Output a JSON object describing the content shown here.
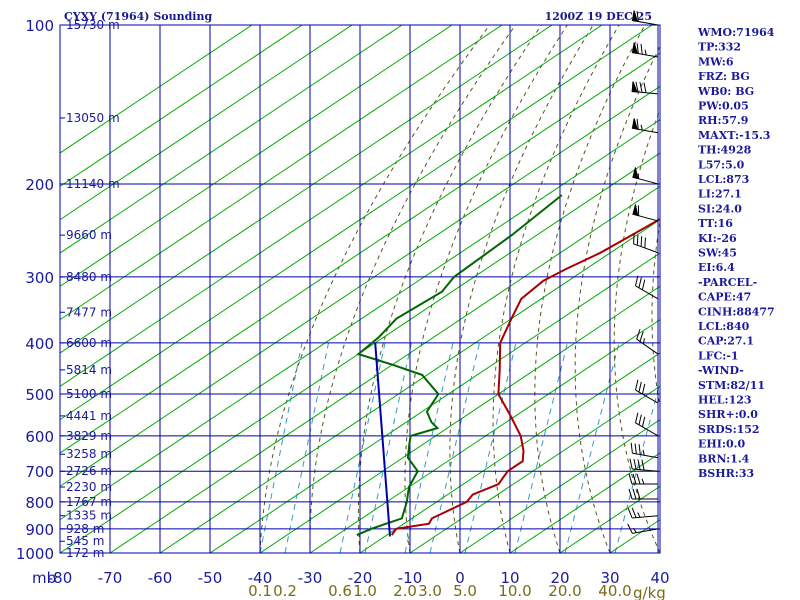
{
  "header": {
    "station": "CYXY (71964) Sounding",
    "time": "1200Z 19 DEC 25"
  },
  "colors": {
    "grid": "#0000aa",
    "isotherm": "#00aa00",
    "dry_adiabat": "#555522",
    "mixing_ratio": "#3399cc",
    "temperature": "#aa0000",
    "dewpoint": "#006600",
    "parcel": "#0000aa",
    "wind": "#000000"
  },
  "chart_data": {
    "type": "line",
    "diagram": "skew-t log-p",
    "pressure_levels": [
      100,
      200,
      300,
      400,
      500,
      600,
      700,
      800,
      900,
      1000
    ],
    "pressure_unit_label": "mb",
    "temp_ticks": [
      -80,
      -70,
      -60,
      -50,
      -40,
      -30,
      -20,
      -10,
      0,
      10,
      20,
      30,
      40
    ],
    "heights": [
      {
        "p": 100,
        "label": "15730 m"
      },
      {
        "p": 150,
        "label": "13050 m"
      },
      {
        "p": 200,
        "label": "11140 m"
      },
      {
        "p": 250,
        "label": "9660 m"
      },
      {
        "p": 300,
        "label": "8480 m"
      },
      {
        "p": 350,
        "label": "7477 m"
      },
      {
        "p": 400,
        "label": "6600 m"
      },
      {
        "p": 450,
        "label": "5814 m"
      },
      {
        "p": 500,
        "label": "5100 m"
      },
      {
        "p": 550,
        "label": "4441 m"
      },
      {
        "p": 600,
        "label": "3829 m"
      },
      {
        "p": 650,
        "label": "3258 m"
      },
      {
        "p": 700,
        "label": "2726 m"
      },
      {
        "p": 750,
        "label": "2230 m"
      },
      {
        "p": 800,
        "label": "1767 m"
      },
      {
        "p": 850,
        "label": "1335 m"
      },
      {
        "p": 900,
        "label": "928 m"
      },
      {
        "p": 950,
        "label": "545 m"
      },
      {
        "p": 1000,
        "label": "172 m"
      }
    ],
    "mixing_ratio_labels": [
      {
        "label": "0.1",
        "t": -40
      },
      {
        "label": "0.2",
        "t": -35
      },
      {
        "label": "0.6",
        "t": -24
      },
      {
        "label": "1.0",
        "t": -19
      },
      {
        "label": "2.0",
        "t": -11
      },
      {
        "label": "3.0",
        "t": -6
      },
      {
        "label": "5.0",
        "t": 1
      },
      {
        "label": "10.0",
        "t": 11
      },
      {
        "label": "20.0",
        "t": 21
      },
      {
        "label": "40.0",
        "t": 31
      }
    ],
    "mixing_ratio_unit": "g/kg",
    "series": [
      {
        "points": [
          {
            "p": 100,
            "t": -57
          },
          {
            "p": 107,
            "t": -56
          },
          {
            "p": 115,
            "t": -57
          },
          {
            "p": 130,
            "t": -55
          },
          {
            "p": 160,
            "t": -56
          },
          {
            "p": 200,
            "t": -58
          },
          {
            "p": 230,
            "t": -60
          },
          {
            "p": 250,
            "t": -61
          },
          {
            "p": 270,
            "t": -62
          },
          {
            "p": 290,
            "t": -64
          },
          {
            "p": 305,
            "t": -65
          },
          {
            "p": 330,
            "t": -64
          },
          {
            "p": 360,
            "t": -60
          },
          {
            "p": 400,
            "t": -55
          },
          {
            "p": 450,
            "t": -47
          },
          {
            "p": 500,
            "t": -40
          },
          {
            "p": 550,
            "t": -31
          },
          {
            "p": 600,
            "t": -23
          },
          {
            "p": 640,
            "t": -18
          },
          {
            "p": 670,
            "t": -15
          },
          {
            "p": 700,
            "t": -15
          },
          {
            "p": 740,
            "t": -13
          },
          {
            "p": 775,
            "t": -15
          },
          {
            "p": 800,
            "t": -14
          },
          {
            "p": 860,
            "t": -16
          },
          {
            "p": 880,
            "t": -15
          },
          {
            "p": 900,
            "t": -20
          },
          {
            "p": 925,
            "t": -19
          }
        ]
      },
      {
        "points": [
          {
            "p": 210,
            "t": -87
          },
          {
            "p": 250,
            "t": -85
          },
          {
            "p": 300,
            "t": -84
          },
          {
            "p": 320,
            "t": -82
          },
          {
            "p": 360,
            "t": -83
          },
          {
            "p": 390,
            "t": -81
          },
          {
            "p": 420,
            "t": -80
          },
          {
            "p": 440,
            "t": -70
          },
          {
            "p": 460,
            "t": -61
          },
          {
            "p": 500,
            "t": -52
          },
          {
            "p": 540,
            "t": -49
          },
          {
            "p": 565,
            "t": -45
          },
          {
            "p": 580,
            "t": -42
          },
          {
            "p": 600,
            "t": -45
          },
          {
            "p": 620,
            "t": -43
          },
          {
            "p": 660,
            "t": -39
          },
          {
            "p": 700,
            "t": -33
          },
          {
            "p": 750,
            "t": -30
          },
          {
            "p": 800,
            "t": -26
          },
          {
            "p": 860,
            "t": -22
          },
          {
            "p": 900,
            "t": -25
          },
          {
            "p": 925,
            "t": -26
          }
        ]
      },
      {
        "points": [
          {
            "p": 400,
            "t": -80
          },
          {
            "p": 930,
            "t": -19
          }
        ]
      }
    ]
  },
  "wind_barbs": [
    {
      "p": 100,
      "dir": 280,
      "spd": 60
    },
    {
      "p": 115,
      "dir": 280,
      "spd": 75
    },
    {
      "p": 135,
      "dir": 275,
      "spd": 80
    },
    {
      "p": 160,
      "dir": 280,
      "spd": 65
    },
    {
      "p": 200,
      "dir": 285,
      "spd": 55
    },
    {
      "p": 235,
      "dir": 285,
      "spd": 60
    },
    {
      "p": 270,
      "dir": 290,
      "spd": 40
    },
    {
      "p": 330,
      "dir": 300,
      "spd": 30
    },
    {
      "p": 420,
      "dir": 305,
      "spd": 25
    },
    {
      "p": 520,
      "dir": 300,
      "spd": 30
    },
    {
      "p": 600,
      "dir": 300,
      "spd": 30
    },
    {
      "p": 660,
      "dir": 280,
      "spd": 35
    },
    {
      "p": 700,
      "dir": 275,
      "spd": 40
    },
    {
      "p": 740,
      "dir": 270,
      "spd": 35
    },
    {
      "p": 790,
      "dir": 270,
      "spd": 30
    },
    {
      "p": 850,
      "dir": 265,
      "spd": 25
    },
    {
      "p": 900,
      "dir": 260,
      "spd": 15
    }
  ],
  "indices": [
    "WMO:71964",
    "TP:332",
    "MW:6",
    "FRZ: BG",
    "WB0: BG",
    "PW:0.05",
    "RH:57.9",
    "MAXT:-15.3",
    "TH:4928",
    "L57:5.0",
    "LCL:873",
    "LI:27.1",
    "SI:24.0",
    "TT:16",
    "KI:-26",
    "SW:45",
    "EI:6.4",
    "-PARCEL-",
    "CAPE:47",
    "CINH:88477",
    "LCL:840",
    "CAP:27.1",
    "LFC:-1",
    "-WIND-",
    "STM:82/11",
    "HEL:123",
    "SHR+:0.0",
    "SRDS:152",
    "EHI:0.0",
    "BRN:1.4",
    "BSHR:33"
  ]
}
